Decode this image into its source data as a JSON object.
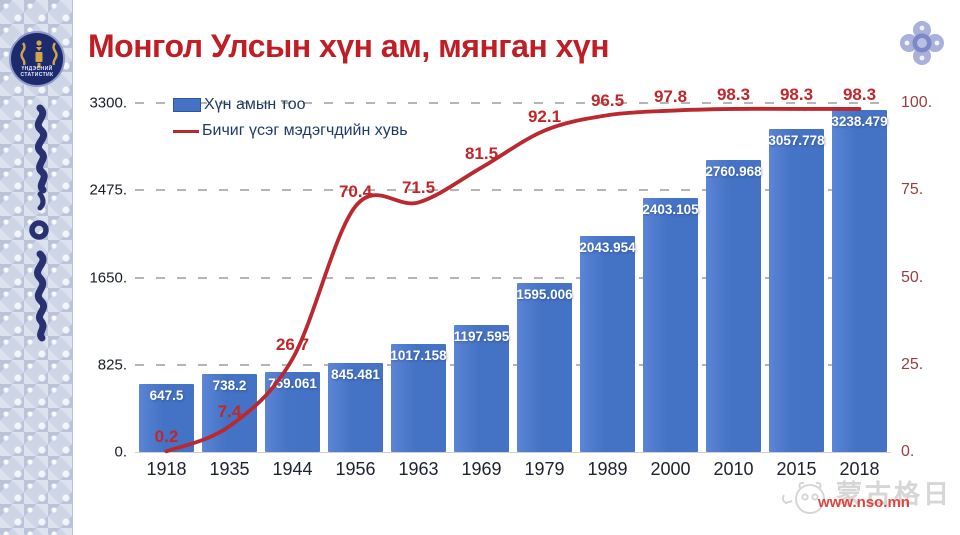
{
  "header": {
    "title": "Монгол Улсын хүн ам, мянган хүн"
  },
  "sidebar": {
    "logo_line1": "ҮНДЭСНИЙ",
    "logo_line2": "СТАТИСТИК"
  },
  "chart_data": {
    "type": "bar",
    "title": "Монгол Улсын хүн ам, мянган хүн",
    "categories": [
      "1918",
      "1935",
      "1944",
      "1956",
      "1963",
      "1969",
      "1979",
      "1989",
      "2000",
      "2010",
      "2015",
      "2018"
    ],
    "series": [
      {
        "name": "Хүн амын тоо",
        "type": "bar",
        "axis": "left",
        "values": [
          647.5,
          738.2,
          759.061,
          845.481,
          1017.158,
          1197.595,
          1595.006,
          2043.954,
          2403.105,
          2760.968,
          3057.778,
          3238.479
        ],
        "labels": [
          "647.5",
          "738.2",
          "759.061",
          "845.481",
          "1017.158",
          "1197.595",
          "1595.006",
          "2043.954",
          "2403.105",
          "2760.968",
          "3057.778",
          "3238.479"
        ]
      },
      {
        "name": "Бичиг үсэг мэдэгчдийн хувь",
        "type": "line",
        "axis": "right",
        "values": [
          0.2,
          7.4,
          26.7,
          70.4,
          71.5,
          81.5,
          92.1,
          96.5,
          97.8,
          98.3,
          98.3,
          98.3
        ],
        "labels": [
          "0.2",
          "7.4",
          "26.7",
          "70.4",
          "71.5",
          "81.5",
          "92.1",
          "96.5",
          "97.8",
          "98.3",
          "98.3",
          "98.3"
        ]
      }
    ],
    "left_axis": {
      "ticks": [
        "0.",
        "825.",
        "1650.",
        "2475.",
        "3300."
      ],
      "min": 0,
      "max": 3300
    },
    "right_axis": {
      "ticks": [
        "0.",
        "25.",
        "50.",
        "75.",
        "100."
      ],
      "min": 0,
      "max": 100
    },
    "grid": "dashed-horizontal",
    "legend_position": "top-left"
  },
  "watermark": {
    "brand": "蒙古格日",
    "url": "www.nso.mn"
  },
  "colors": {
    "bar": "#4472c4",
    "line": "#b9292f",
    "title": "#bf1e24",
    "legend_text": "#1f3a68",
    "left_axis_text": "#181d29",
    "right_axis_text": "#9c3d40",
    "line_label": "#c0272b",
    "url": "#e0443e"
  }
}
